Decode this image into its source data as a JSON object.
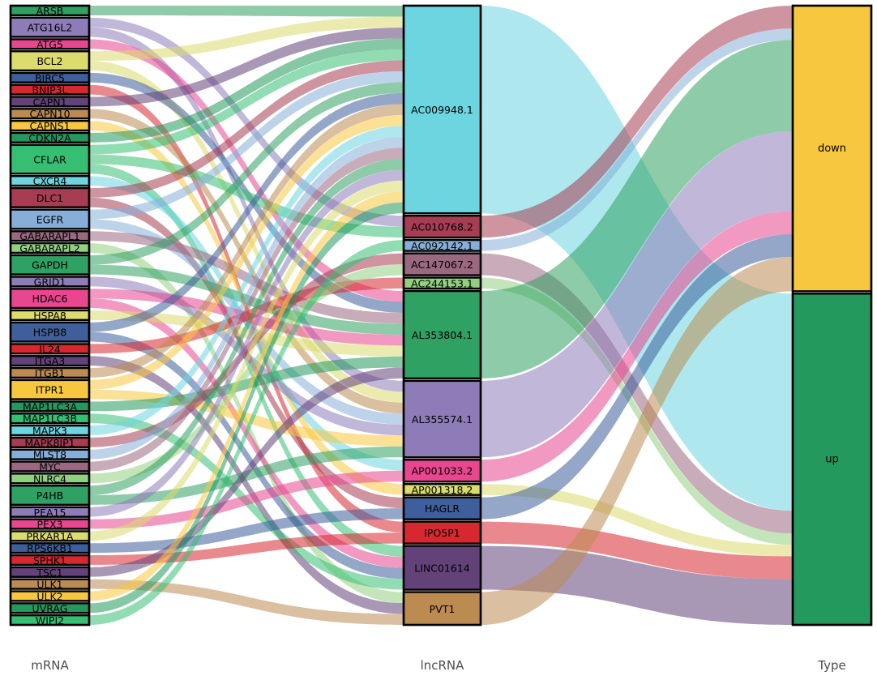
{
  "chart_data": {
    "type": "sankey",
    "description": "Three-column alluvial / sankey diagram linking autophagy mRNAs to lncRNAs to regulation type",
    "legend_position": "none",
    "grid": false,
    "columns": [
      {
        "id": "mRNA",
        "title": "mRNA",
        "nodes": [
          {
            "label": "ARSB",
            "color": "#2FA163",
            "value": 1
          },
          {
            "label": "ATG16L2",
            "color": "#8E7CB8",
            "value": 2
          },
          {
            "label": "ATG5",
            "color": "#E8468F",
            "value": 1
          },
          {
            "label": "BCL2",
            "color": "#DBDB6E",
            "value": 2
          },
          {
            "label": "BIRC5",
            "color": "#3E5F9B",
            "value": 1
          },
          {
            "label": "BNIP3L",
            "color": "#D7282F",
            "value": 1
          },
          {
            "label": "CAPN1",
            "color": "#63427A",
            "value": 1
          },
          {
            "label": "CAPN10",
            "color": "#BC8B52",
            "value": 1
          },
          {
            "label": "CAPNS1",
            "color": "#F7C83F",
            "value": 1
          },
          {
            "label": "CDKN2A",
            "color": "#23995D",
            "value": 1
          },
          {
            "label": "CFLAR",
            "color": "#36BF72",
            "value": 3
          },
          {
            "label": "CXCR4",
            "color": "#6CD5E0",
            "value": 1
          },
          {
            "label": "DLC1",
            "color": "#A63D52",
            "value": 2
          },
          {
            "label": "EGFR",
            "color": "#87AED8",
            "value": 2
          },
          {
            "label": "GABARAPL1",
            "color": "#9A6880",
            "value": 1
          },
          {
            "label": "GABARAPL2",
            "color": "#92CF80",
            "value": 1
          },
          {
            "label": "GAPDH",
            "color": "#2FA163",
            "value": 2
          },
          {
            "label": "GRID1",
            "color": "#8E7CB8",
            "value": 1
          },
          {
            "label": "HDAC6",
            "color": "#E8468F",
            "value": 2
          },
          {
            "label": "HSPA8",
            "color": "#DBDB6E",
            "value": 1
          },
          {
            "label": "HSPB8",
            "color": "#3E5F9B",
            "value": 2
          },
          {
            "label": "IL24",
            "color": "#D7282F",
            "value": 1
          },
          {
            "label": "ITGA3",
            "color": "#63427A",
            "value": 1
          },
          {
            "label": "ITGB1",
            "color": "#BC8B52",
            "value": 1
          },
          {
            "label": "ITPR1",
            "color": "#F7C83F",
            "value": 2
          },
          {
            "label": "MAP1LC3A",
            "color": "#23995D",
            "value": 1
          },
          {
            "label": "MAP1LC3B",
            "color": "#36BF72",
            "value": 1
          },
          {
            "label": "MAPK3",
            "color": "#6CD5E0",
            "value": 1
          },
          {
            "label": "MAPK8IP1",
            "color": "#A63D52",
            "value": 1
          },
          {
            "label": "MLST8",
            "color": "#87AED8",
            "value": 1
          },
          {
            "label": "MYC",
            "color": "#9A6880",
            "value": 1
          },
          {
            "label": "NLRC4",
            "color": "#92CF80",
            "value": 1
          },
          {
            "label": "P4HB",
            "color": "#2FA163",
            "value": 2
          },
          {
            "label": "PEA15",
            "color": "#8E7CB8",
            "value": 1
          },
          {
            "label": "PEX3",
            "color": "#E8468F",
            "value": 1
          },
          {
            "label": "PRKAR1A",
            "color": "#DBDB6E",
            "value": 1
          },
          {
            "label": "RPS6KB1",
            "color": "#3E5F9B",
            "value": 1
          },
          {
            "label": "SPHK1",
            "color": "#D7282F",
            "value": 1
          },
          {
            "label": "TSC1",
            "color": "#63427A",
            "value": 1
          },
          {
            "label": "ULK1",
            "color": "#BC8B52",
            "value": 1
          },
          {
            "label": "ULK2",
            "color": "#F7C83F",
            "value": 1
          },
          {
            "label": "UVRAG",
            "color": "#23995D",
            "value": 1
          },
          {
            "label": "WIPI2",
            "color": "#36BF72",
            "value": 1
          }
        ]
      },
      {
        "id": "lncRNA",
        "title": "lncRNA",
        "nodes": [
          {
            "label": "AC009948.1",
            "color": "#6CD5E0",
            "value": 19
          },
          {
            "label": "AC010768.2",
            "color": "#A63D52",
            "value": 2
          },
          {
            "label": "AC092142.1",
            "color": "#87AED8",
            "value": 1
          },
          {
            "label": "AC147067.2",
            "color": "#9A6880",
            "value": 2
          },
          {
            "label": "AC244153.1",
            "color": "#92CF80",
            "value": 1
          },
          {
            "label": "AL353804.1",
            "color": "#2FA163",
            "value": 8
          },
          {
            "label": "AL355574.1",
            "color": "#8E7CB8",
            "value": 7
          },
          {
            "label": "AP001033.2",
            "color": "#E8468F",
            "value": 2
          },
          {
            "label": "AP001318.2",
            "color": "#DBDB6E",
            "value": 1
          },
          {
            "label": "HAGLR",
            "color": "#3E5F9B",
            "value": 2
          },
          {
            "label": "IPO5P1",
            "color": "#D7282F",
            "value": 2
          },
          {
            "label": "LINC01614",
            "color": "#63427A",
            "value": 4
          },
          {
            "label": "PVT1",
            "color": "#BC8B52",
            "value": 3
          }
        ]
      },
      {
        "id": "Type",
        "title": "Type",
        "nodes": [
          {
            "label": "down",
            "color": "#F7C83F",
            "value": 25
          },
          {
            "label": "up",
            "color": "#23995D",
            "value": 29
          }
        ]
      }
    ],
    "links_mrna_to_lncrna": [
      {
        "source": "ARSB",
        "target": "AC009948.1",
        "value": 1
      },
      {
        "source": "ATG16L2",
        "target": "AC010768.2",
        "value": 1
      },
      {
        "source": "ATG16L2",
        "target": "AL355574.1",
        "value": 1
      },
      {
        "source": "ATG5",
        "target": "AL353804.1",
        "value": 1
      },
      {
        "source": "BCL2",
        "target": "AC009948.1",
        "value": 1
      },
      {
        "source": "BCL2",
        "target": "AL355574.1",
        "value": 1
      },
      {
        "source": "BIRC5",
        "target": "AL353804.1",
        "value": 1
      },
      {
        "source": "BNIP3L",
        "target": "IPO5P1",
        "value": 1
      },
      {
        "source": "CAPN1",
        "target": "AC009948.1",
        "value": 1
      },
      {
        "source": "CAPN10",
        "target": "AL355574.1",
        "value": 1
      },
      {
        "source": "CAPNS1",
        "target": "AP001318.2",
        "value": 1
      },
      {
        "source": "CDKN2A",
        "target": "AC009948.1",
        "value": 1
      },
      {
        "source": "CFLAR",
        "target": "AC009948.1",
        "value": 1
      },
      {
        "source": "CFLAR",
        "target": "AC010768.2",
        "value": 1
      },
      {
        "source": "CFLAR",
        "target": "LINC01614",
        "value": 1
      },
      {
        "source": "CXCR4",
        "target": "AP001033.2",
        "value": 1
      },
      {
        "source": "DLC1",
        "target": "AC009948.1",
        "value": 1
      },
      {
        "source": "DLC1",
        "target": "HAGLR",
        "value": 1
      },
      {
        "source": "EGFR",
        "target": "AC009948.1",
        "value": 1
      },
      {
        "source": "EGFR",
        "target": "AL355574.1",
        "value": 1
      },
      {
        "source": "GABARAPL1",
        "target": "AL353804.1",
        "value": 1
      },
      {
        "source": "GABARAPL2",
        "target": "PVT1",
        "value": 1
      },
      {
        "source": "GAPDH",
        "target": "AC009948.1",
        "value": 1
      },
      {
        "source": "GAPDH",
        "target": "AL353804.1",
        "value": 1
      },
      {
        "source": "GRID1",
        "target": "AL355574.1",
        "value": 1
      },
      {
        "source": "HDAC6",
        "target": "AL353804.1",
        "value": 1
      },
      {
        "source": "HDAC6",
        "target": "LINC01614",
        "value": 1
      },
      {
        "source": "HSPA8",
        "target": "AL353804.1",
        "value": 1
      },
      {
        "source": "HSPB8",
        "target": "AC009948.1",
        "value": 1
      },
      {
        "source": "HSPB8",
        "target": "LINC01614",
        "value": 1
      },
      {
        "source": "IL24",
        "target": "AC244153.1",
        "value": 1
      },
      {
        "source": "ITGA3",
        "target": "PVT1",
        "value": 1
      },
      {
        "source": "ITGB1",
        "target": "AC009948.1",
        "value": 1
      },
      {
        "source": "ITPR1",
        "target": "AC009948.1",
        "value": 1
      },
      {
        "source": "ITPR1",
        "target": "AL355574.1",
        "value": 1
      },
      {
        "source": "MAP1LC3A",
        "target": "AL353804.1",
        "value": 1
      },
      {
        "source": "MAP1LC3B",
        "target": "LINC01614",
        "value": 1
      },
      {
        "source": "MAPK3",
        "target": "AC009948.1",
        "value": 1
      },
      {
        "source": "MAPK8IP1",
        "target": "AC147067.2",
        "value": 1
      },
      {
        "source": "MLST8",
        "target": "AC009948.1",
        "value": 1
      },
      {
        "source": "MYC",
        "target": "AC009948.1",
        "value": 1
      },
      {
        "source": "NLRC4",
        "target": "AC147067.2",
        "value": 1
      },
      {
        "source": "P4HB",
        "target": "AC009948.1",
        "value": 1
      },
      {
        "source": "P4HB",
        "target": "AL355574.1",
        "value": 1
      },
      {
        "source": "PEA15",
        "target": "AC009948.1",
        "value": 1
      },
      {
        "source": "PEX3",
        "target": "AP001033.2",
        "value": 1
      },
      {
        "source": "PRKAR1A",
        "target": "AC009948.1",
        "value": 1
      },
      {
        "source": "RPS6KB1",
        "target": "HAGLR",
        "value": 1
      },
      {
        "source": "SPHK1",
        "target": "IPO5P1",
        "value": 1
      },
      {
        "source": "TSC1",
        "target": "AL353804.1",
        "value": 1
      },
      {
        "source": "ULK1",
        "target": "PVT1",
        "value": 1
      },
      {
        "source": "ULK2",
        "target": "AC009948.1",
        "value": 1
      },
      {
        "source": "UVRAG",
        "target": "AC009948.1",
        "value": 1
      },
      {
        "source": "WIPI2",
        "target": "AC092142.1",
        "value": 1
      }
    ],
    "links_lncrna_to_type": [
      {
        "source": "AC009948.1",
        "target": "up",
        "value": 19
      },
      {
        "source": "AC010768.2",
        "target": "down",
        "value": 2
      },
      {
        "source": "AC092142.1",
        "target": "down",
        "value": 1
      },
      {
        "source": "AC147067.2",
        "target": "up",
        "value": 2
      },
      {
        "source": "AC244153.1",
        "target": "up",
        "value": 1
      },
      {
        "source": "AL353804.1",
        "target": "down",
        "value": 8
      },
      {
        "source": "AL355574.1",
        "target": "down",
        "value": 7
      },
      {
        "source": "AP001033.2",
        "target": "down",
        "value": 2
      },
      {
        "source": "AP001318.2",
        "target": "up",
        "value": 1
      },
      {
        "source": "HAGLR",
        "target": "down",
        "value": 2
      },
      {
        "source": "IPO5P1",
        "target": "up",
        "value": 2
      },
      {
        "source": "LINC01614",
        "target": "up",
        "value": 4
      },
      {
        "source": "PVT1",
        "target": "down",
        "value": 3
      }
    ],
    "style": {
      "background": "#ffffff",
      "flow_opacity": 0.55,
      "node_border_color": "#000000",
      "node_label_color": "#000000",
      "axis_title_color": "#4d4d4d"
    }
  }
}
